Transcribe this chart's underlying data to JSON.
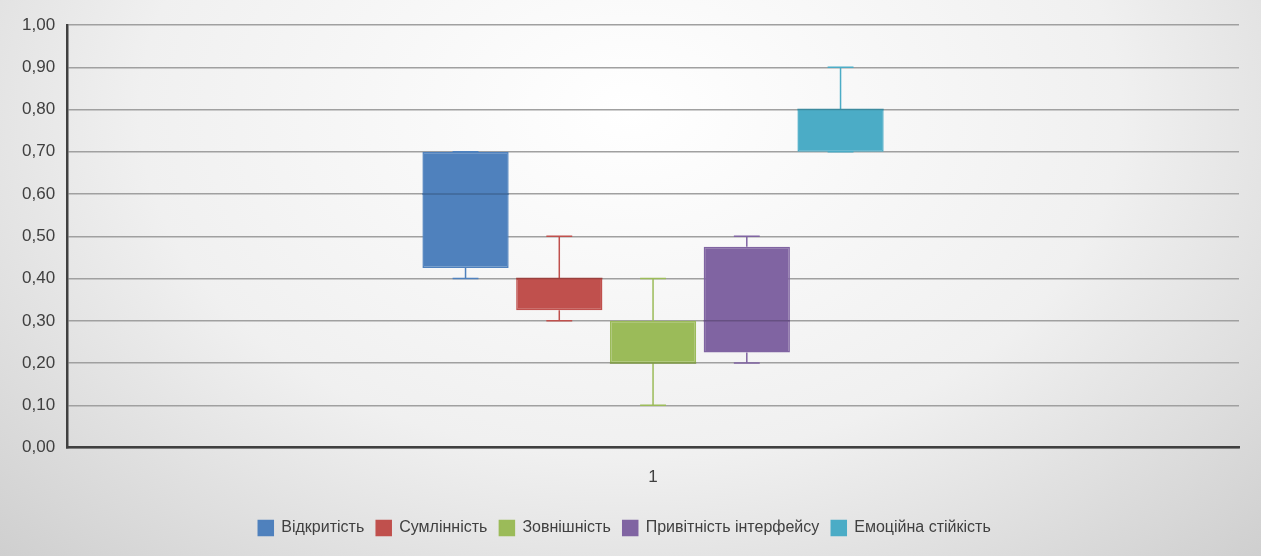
{
  "chart_data": {
    "type": "box",
    "categories": [
      "1"
    ],
    "series": [
      {
        "name": "Відкритість",
        "color": "#4f81bd",
        "boxes": [
          {
            "low": 0.4,
            "q1": 0.425,
            "median": 0.6,
            "q3": 0.7,
            "high": 0.7
          }
        ]
      },
      {
        "name": "Сумлінність",
        "color": "#c0504d",
        "boxes": [
          {
            "low": 0.3,
            "q1": 0.325,
            "median": 0.4,
            "q3": 0.4,
            "high": 0.5
          }
        ]
      },
      {
        "name": "Зовнішність",
        "color": "#9bbb59",
        "boxes": [
          {
            "low": 0.1,
            "q1": 0.2,
            "median": 0.2,
            "q3": 0.3,
            "high": 0.4
          }
        ]
      },
      {
        "name": "Привітність інтерфейсу",
        "color": "#8064a2",
        "boxes": [
          {
            "low": 0.2,
            "q1": 0.225,
            "median": 0.3,
            "q3": 0.475,
            "high": 0.5
          }
        ]
      },
      {
        "name": "Емоційна стійкість",
        "color": "#4bacc6",
        "boxes": [
          {
            "low": 0.7,
            "q1": 0.7,
            "median": 0.8,
            "q3": 0.8,
            "high": 0.9
          }
        ]
      }
    ],
    "ylim": [
      0,
      1
    ],
    "yticks": [
      {
        "value": 0,
        "label": "0,00"
      },
      {
        "value": 0.1,
        "label": "0,10"
      },
      {
        "value": 0.2,
        "label": "0,20"
      },
      {
        "value": 0.3,
        "label": "0,30"
      },
      {
        "value": 0.4,
        "label": "0,40"
      },
      {
        "value": 0.5,
        "label": "0,50"
      },
      {
        "value": 0.6,
        "label": "0,60"
      },
      {
        "value": 0.7,
        "label": "0,70"
      },
      {
        "value": 0.8,
        "label": "0,80"
      },
      {
        "value": 0.9,
        "label": "0,90"
      },
      {
        "value": 1,
        "label": "1,00"
      }
    ],
    "grid": "y",
    "legend": "bottom"
  }
}
